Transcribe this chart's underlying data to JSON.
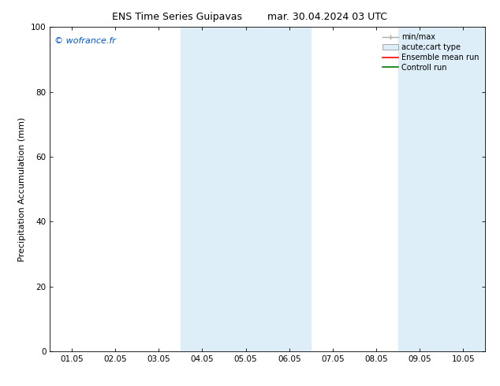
{
  "title": "ENS Time Series Guipavas",
  "title2": "mar. 30.04.2024 03 UTC",
  "ylabel": "Precipitation Accumulation (mm)",
  "watermark": "© wofrance.fr",
  "watermark_color": "#0055cc",
  "ylim": [
    0,
    100
  ],
  "yticks": [
    0,
    20,
    40,
    60,
    80,
    100
  ],
  "xtick_labels": [
    "01.05",
    "02.05",
    "03.05",
    "04.05",
    "05.05",
    "06.05",
    "07.05",
    "08.05",
    "09.05",
    "10.05"
  ],
  "shaded_regions": [
    {
      "xstart": 3,
      "xend": 5
    },
    {
      "xstart": 8,
      "xend": 9
    }
  ],
  "shaded_color": "#ddeef8",
  "background_color": "#ffffff",
  "legend_entries": [
    {
      "label": "min/max",
      "color": "#aaaaaa",
      "style": "minmax"
    },
    {
      "label": "acute;cart type",
      "color": "#cccccc",
      "style": "bar"
    },
    {
      "label": "Ensemble mean run",
      "color": "#ff0000",
      "style": "line"
    },
    {
      "label": "Controll run",
      "color": "#007700",
      "style": "line"
    }
  ],
  "title_fontsize": 9,
  "tick_fontsize": 7.5,
  "ylabel_fontsize": 8,
  "watermark_fontsize": 8,
  "legend_fontsize": 7
}
